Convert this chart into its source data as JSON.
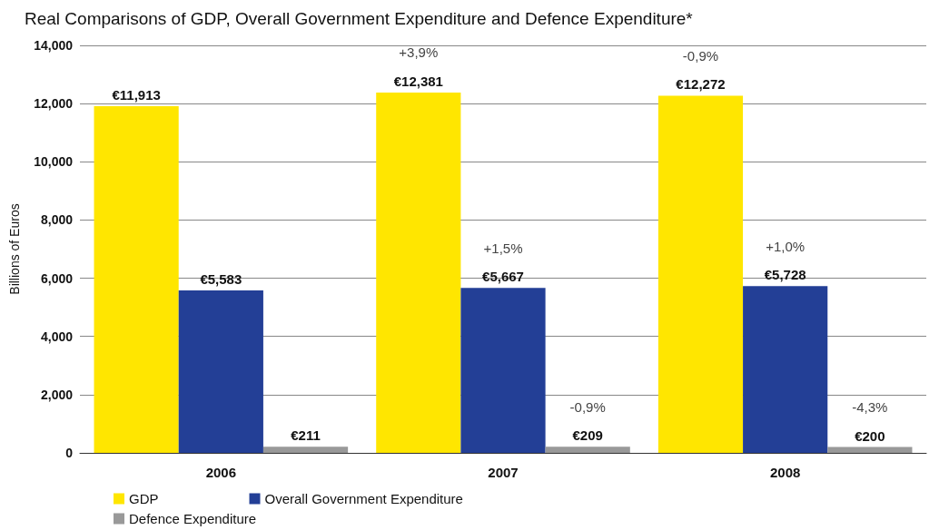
{
  "chart_data": {
    "type": "bar",
    "title": "Real Comparisons of GDP, Overall Government Expenditure and Defence Expenditure*",
    "ylabel": "Billions of Euros",
    "categories": [
      "2006",
      "2007",
      "2008"
    ],
    "series": [
      {
        "name": "GDP",
        "color": "#ffe600",
        "values": [
          11913,
          12381,
          12272
        ],
        "value_labels": [
          "€11,913",
          "€12,381",
          "€12,272"
        ]
      },
      {
        "name": "Overall Government Expenditure",
        "color": "#233f96",
        "values": [
          5583,
          5667,
          5728
        ],
        "value_labels": [
          "€5,583",
          "€5,667",
          "€5,728"
        ]
      },
      {
        "name": "Defence Expenditure",
        "color": "#999999",
        "values": [
          211,
          209,
          200
        ],
        "value_labels": [
          "€211",
          "€209",
          "€200"
        ]
      }
    ],
    "ylim": [
      0,
      14000
    ],
    "yticks": [
      0,
      {
        "value": 2000,
        "label": "2,000"
      },
      {
        "value": 4000,
        "label": "4,000"
      },
      {
        "value": 6000,
        "label": "6,000"
      },
      {
        "value": 8000,
        "label": "8,000"
      },
      {
        "value": 10000,
        "label": "10,000"
      },
      {
        "value": 12000,
        "label": "12,000"
      },
      {
        "value": 14000,
        "label": "14,000"
      }
    ],
    "grid": "y",
    "legend": "bottom left",
    "annotations": [
      "+3,9%",
      "-0,9%",
      {
        "text": "+1,5%",
        "x": "2007",
        "y": 5667
      },
      {
        "text": "+1,0%",
        "x": "2008",
        "y": 5728
      },
      "-0,9%",
      "-4,3%"
    ]
  }
}
